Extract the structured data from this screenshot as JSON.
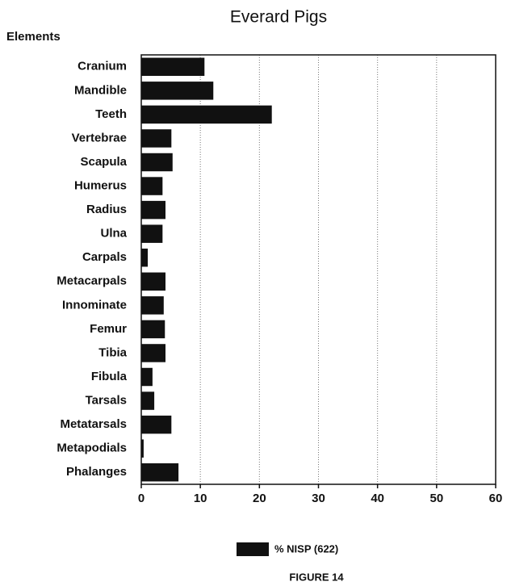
{
  "chart_data": {
    "type": "bar",
    "orientation": "horizontal",
    "title": "Everard Pigs",
    "y_label": "Elements",
    "categories": [
      "Cranium",
      "Mandible",
      "Teeth",
      "Vertebrae",
      "Scapula",
      "Humerus",
      "Radius",
      "Ulna",
      "Carpals",
      "Metacarpals",
      "Innominate",
      "Femur",
      "Tibia",
      "Fibula",
      "Tarsals",
      "Metatarsals",
      "Metapodials",
      "Phalanges"
    ],
    "series": [
      {
        "name": "% NISP (622)",
        "color": "#111111",
        "values": [
          10.7,
          12.2,
          22.1,
          5.1,
          5.3,
          3.6,
          4.1,
          3.6,
          1.1,
          4.1,
          3.8,
          4.0,
          4.1,
          1.9,
          2.2,
          5.1,
          0.4,
          6.3
        ]
      }
    ],
    "xlim": [
      0,
      60
    ],
    "xticks": [
      0,
      10,
      20,
      30,
      40,
      50,
      60
    ],
    "grid": true,
    "legend": "bottom",
    "caption": "FIGURE 14"
  }
}
